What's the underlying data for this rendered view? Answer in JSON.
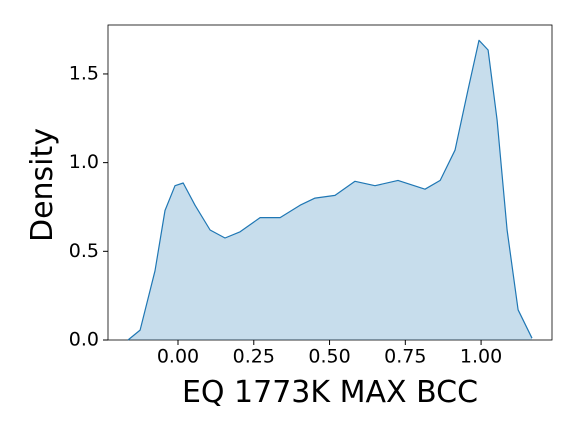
{
  "chart_data": {
    "type": "area",
    "xlabel": "EQ 1773K MAX BCC",
    "ylabel": "Density",
    "x": [
      -0.165,
      -0.125,
      -0.076,
      -0.043,
      -0.01,
      0.017,
      0.056,
      0.106,
      0.155,
      0.205,
      0.271,
      0.337,
      0.403,
      0.452,
      0.518,
      0.584,
      0.65,
      0.726,
      0.815,
      0.865,
      0.914,
      0.957,
      0.993,
      1.023,
      1.053,
      1.086,
      1.122,
      1.168
    ],
    "values": [
      0,
      0.056,
      0.39,
      0.73,
      0.87,
      0.885,
      0.76,
      0.62,
      0.575,
      0.61,
      0.69,
      0.69,
      0.76,
      0.8,
      0.815,
      0.895,
      0.87,
      0.9,
      0.85,
      0.9,
      1.07,
      1.41,
      1.69,
      1.635,
      1.24,
      0.62,
      0.17,
      0.01
    ],
    "color": "#1f77b4",
    "xlim": [
      -0.231,
      1.234
    ],
    "ylim": [
      0,
      1.776
    ],
    "xticks": [
      {
        "value": 0,
        "label": "0.00"
      },
      {
        "value": 0.25,
        "label": "0.25"
      },
      {
        "value": 0.5,
        "label": "0.50"
      },
      {
        "value": 0.75,
        "label": "0.75"
      },
      {
        "value": 1,
        "label": "1.00"
      }
    ],
    "yticks": [
      {
        "value": 0,
        "label": "0.0"
      },
      {
        "value": 0.5,
        "label": "0.5"
      },
      {
        "value": 1,
        "label": "1.0"
      },
      {
        "value": 1.5,
        "label": "1.5"
      }
    ],
    "grid": false
  }
}
